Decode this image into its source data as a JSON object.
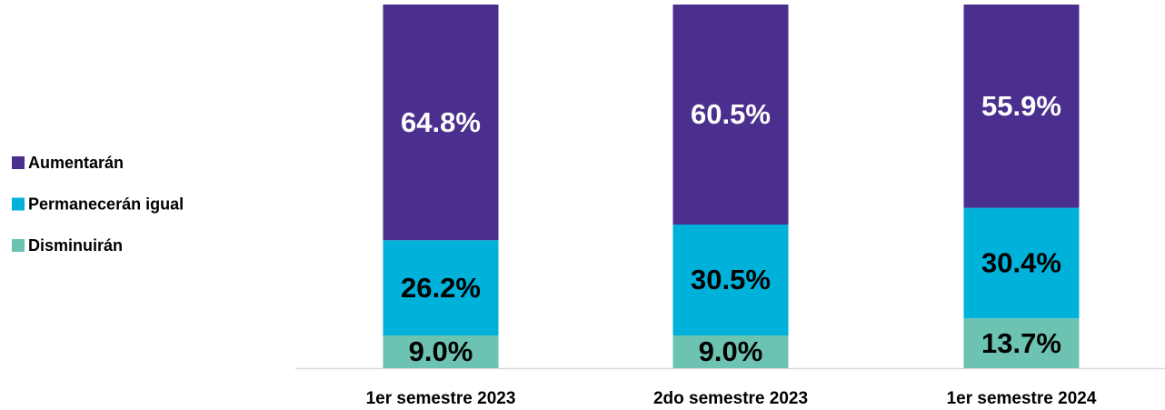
{
  "chart_data": {
    "type": "stacked_bar",
    "categories": [
      "1er semestre 2023",
      "2do semestre 2023",
      "1er semestre 2024"
    ],
    "series": [
      {
        "name": "Aumentarán",
        "color": "#4b2f8e",
        "label_color": "#ffffff",
        "values": [
          64.8,
          60.5,
          55.9
        ],
        "value_labels": [
          "64.8%",
          "60.5%",
          "55.9%"
        ]
      },
      {
        "name": "Permanecerán igual",
        "color": "#00b1da",
        "label_color": "#000000",
        "values": [
          26.2,
          30.5,
          30.4
        ],
        "value_labels": [
          "26.2%",
          "30.5%",
          "30.4%"
        ]
      },
      {
        "name": "Disminuirán",
        "color": "#6dc3b1",
        "label_color": "#000000",
        "values": [
          9.0,
          9.0,
          13.7
        ],
        "value_labels": [
          "9.0%",
          "9.0%",
          "13.7%"
        ]
      }
    ],
    "ylim": [
      0,
      100
    ],
    "legend": "left"
  }
}
